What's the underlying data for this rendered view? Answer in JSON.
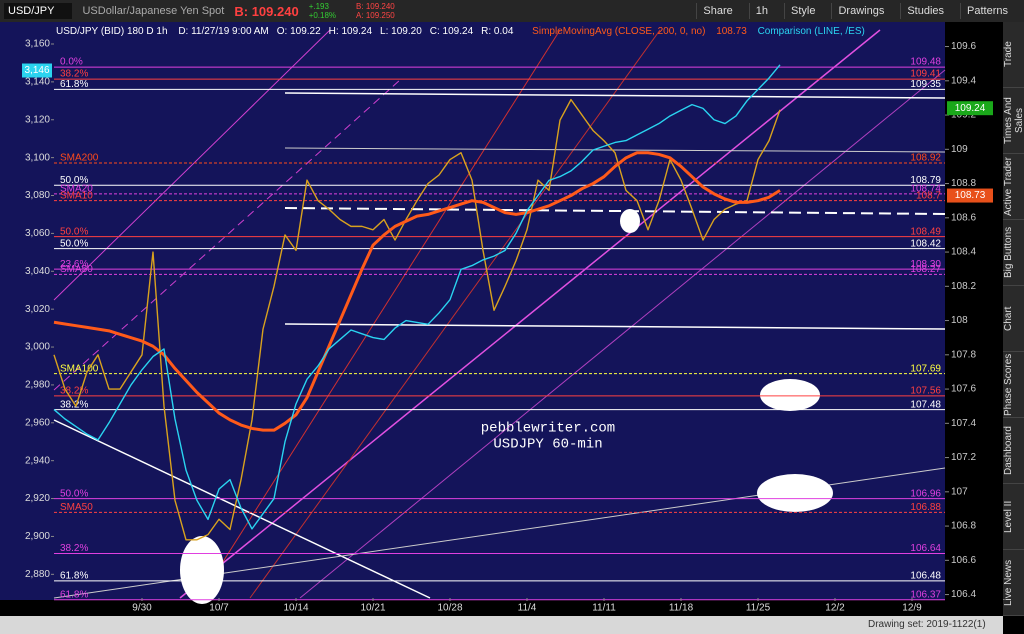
{
  "toolbar": {
    "symbol": "USD/JPY",
    "description": "USDollar/Japanese Yen Spot",
    "bid": "B: 109.240",
    "change": "+.193",
    "change_pct": "+0.18%",
    "bid_small": "B: 109.240",
    "ask": "A: 109.250",
    "buttons": [
      "Share",
      "1h",
      "Style",
      "Drawings",
      "Studies",
      "Patterns"
    ]
  },
  "sidebar": [
    "Trade",
    "Times And Sales",
    "Active Trader",
    "Big Buttons",
    "Chart",
    "Phase Scores",
    "Dashboard",
    "Level II",
    "Live News"
  ],
  "status": "Drawing set: 2019-1122(1)",
  "chart_data": {
    "type": "line",
    "title": "USD/JPY (BID) 180 D 1h",
    "info": [
      "D: 11/27/19 9:00 AM",
      "O: 109.22",
      "H: 109.24",
      "L: 109.20",
      "C: 109.24",
      "R: 0.04"
    ],
    "annotations": [
      "pebblewriter.com",
      "USDJPY 60-min"
    ],
    "categories": [
      null,
      null,
      null,
      null,
      null,
      null,
      null,
      null,
      "9/30",
      null,
      null,
      null,
      null,
      null,
      null,
      "10/7",
      null,
      null,
      null,
      null,
      null,
      null,
      "10/14",
      null,
      null,
      null,
      null,
      null,
      null,
      "10/21",
      null,
      null,
      null,
      null,
      null,
      null,
      "10/28",
      null,
      null,
      null,
      null,
      null,
      null,
      "11/4",
      null,
      null,
      null,
      null,
      null,
      null,
      "11/11",
      null,
      null,
      null,
      null,
      null,
      null,
      "11/18",
      null,
      null,
      null,
      null,
      null,
      null,
      "11/25",
      null,
      null,
      null,
      null,
      null,
      null,
      "12/2",
      null,
      null,
      null,
      null,
      null,
      null,
      "12/9",
      null,
      null,
      null
    ],
    "series": [
      {
        "name": "USD/JPY",
        "color": "#d9a21e",
        "values": [
          107.8,
          107.6,
          107.5,
          107.7,
          107.8,
          107.6,
          107.6,
          107.7,
          107.8,
          108.4,
          107.5,
          106.95,
          106.72,
          106.72,
          106.75,
          106.84,
          106.78,
          107.07,
          107.42,
          107.95,
          108.2,
          108.5,
          108.41,
          108.82,
          108.7,
          108.65,
          108.59,
          108.55,
          108.55,
          108.53,
          108.59,
          108.47,
          108.59,
          108.7,
          108.8,
          108.85,
          108.94,
          108.98,
          108.82,
          108.41,
          108.06,
          108.2,
          108.35,
          108.53,
          108.82,
          108.76,
          109.17,
          109.29,
          109.2,
          109.11,
          109.05,
          108.98,
          108.76,
          108.7,
          108.53,
          108.7,
          108.94,
          108.82,
          108.65,
          108.47,
          108.59,
          108.65,
          108.68,
          108.7,
          108.94,
          109.05,
          109.23,
          null,
          null,
          null,
          null,
          null,
          null,
          null,
          null,
          null,
          null,
          null,
          null,
          null,
          null,
          null
        ]
      },
      {
        "name": "SimpleMovingAvg (CLOSE, 200, 0, no)",
        "color": "#ff5a1a",
        "values": [
          107.99,
          107.98,
          107.97,
          107.96,
          107.95,
          107.94,
          107.92,
          107.9,
          107.88,
          107.85,
          107.8,
          107.72,
          107.65,
          107.58,
          107.52,
          107.46,
          107.42,
          107.39,
          107.37,
          107.36,
          107.36,
          107.4,
          107.45,
          107.55,
          107.7,
          107.85,
          108.0,
          108.15,
          108.3,
          108.44,
          108.5,
          108.55,
          108.58,
          108.61,
          108.62,
          108.64,
          108.66,
          108.68,
          108.7,
          108.69,
          108.66,
          108.63,
          108.62,
          108.63,
          108.65,
          108.67,
          108.7,
          108.73,
          108.77,
          108.8,
          108.84,
          108.9,
          108.95,
          108.98,
          108.98,
          108.97,
          108.95,
          108.9,
          108.84,
          108.78,
          108.74,
          108.71,
          108.69,
          108.69,
          108.7,
          108.72,
          108.76,
          null,
          null,
          null,
          null,
          null,
          null,
          null,
          null,
          null,
          null,
          null,
          null,
          null,
          null,
          null
        ]
      },
      {
        "name": "Comparison (LINE, /ES)",
        "color": "#2ad4f0",
        "axis": "y2",
        "values": [
          2967,
          2962,
          2958,
          2954,
          2951,
          2960,
          2970,
          2980,
          2988,
          2995,
          2999,
          2962,
          2935,
          2919,
          2909,
          2925,
          2930,
          2915,
          2904,
          2912,
          2920,
          2950,
          2970,
          2983,
          2990,
          2999,
          3004,
          3009,
          3007,
          3005,
          3004,
          3010,
          3014,
          3013,
          3012,
          3018,
          3025,
          3041,
          3043,
          3046,
          3048,
          3051,
          3060,
          3072,
          3080,
          3088,
          3090,
          3093,
          3098,
          3104,
          3106,
          3108,
          3109,
          3112,
          3115,
          3118,
          3122,
          3125,
          3128,
          3126,
          3120,
          3118,
          3122,
          3130,
          3136,
          3142,
          3149,
          null,
          null,
          null,
          null,
          null,
          null,
          null,
          null,
          null,
          null,
          null,
          null,
          null,
          null,
          null
        ]
      }
    ],
    "ylim": [
      106.38,
      109.72
    ],
    "yticks": [
      106.4,
      106.6,
      106.8,
      107,
      107.2,
      107.4,
      107.6,
      107.8,
      108,
      108.2,
      108.4,
      108.6,
      108.8,
      109,
      109.2,
      109.4,
      109.6
    ],
    "y2lim": [
      2867.5,
      3169.5
    ],
    "y2ticks": [
      {
        "value": 2880,
        "label": "2,880"
      },
      {
        "value": 2900,
        "label": "2,900"
      },
      {
        "value": 2920,
        "label": "2,920"
      },
      {
        "value": 2940,
        "label": "2,940"
      },
      {
        "value": 2960,
        "label": "2,960"
      },
      {
        "value": 2980,
        "label": "2,980"
      },
      {
        "value": 3000,
        "label": "3,000"
      },
      {
        "value": 3020,
        "label": "3,020"
      },
      {
        "value": 3040,
        "label": "3,040"
      },
      {
        "value": 3060,
        "label": "3,060"
      },
      {
        "value": 3080,
        "label": "3,080"
      },
      {
        "value": 3100,
        "label": "3,100"
      },
      {
        "value": 3120,
        "label": "3,120"
      },
      {
        "value": 3140,
        "label": "3,140"
      },
      {
        "value": 3160,
        "label": "3,160"
      }
    ],
    "grid": false,
    "levels": [
      {
        "value": 109.48,
        "label": "109.48",
        "left": "0.0%",
        "color": "#e040e0"
      },
      {
        "value": 109.41,
        "label": "109.41",
        "left": "38.2%",
        "color": "#ff4040"
      },
      {
        "value": 109.35,
        "label": "109.35",
        "left": "61.8%",
        "color": "#ffffff"
      },
      {
        "value": 108.92,
        "label": "108.92",
        "left": "SMA200",
        "color": "#ff4a1a"
      },
      {
        "value": 108.79,
        "label": "108.79",
        "left": "50.0%",
        "color": "#ffffff"
      },
      {
        "value": 108.74,
        "label": "108.74",
        "left": "SMA20",
        "color": "#e040e0"
      },
      {
        "value": 108.7,
        "label": "108.7",
        "left": "SMA10",
        "color": "#ff4040"
      },
      {
        "value": 108.49,
        "label": "108.49",
        "left": "50.0%",
        "color": "#ff4040"
      },
      {
        "value": 108.42,
        "label": "108.42",
        "left": "50.0%",
        "color": "#ffffff"
      },
      {
        "value": 108.3,
        "label": "108.30",
        "left": "23.6%",
        "color": "#e040e0"
      },
      {
        "value": 108.27,
        "label": "108.27",
        "left": "SMA50",
        "color": "#e040e0"
      },
      {
        "value": 107.69,
        "label": "107.69",
        "left": "SMA100",
        "color": "#ffff40"
      },
      {
        "value": 107.56,
        "label": "107.56",
        "left": "38.2%",
        "color": "#ff4040"
      },
      {
        "value": 107.48,
        "label": "107.48",
        "left": "38.2%",
        "color": "#ffffff"
      },
      {
        "value": 106.96,
        "label": "106.96",
        "left": "50.0%",
        "color": "#e040e0"
      },
      {
        "value": 106.88,
        "label": "106.88",
        "left": "SMA50",
        "color": "#ff4040"
      },
      {
        "value": 106.64,
        "label": "106.64",
        "left": "38.2%",
        "color": "#e040e0"
      },
      {
        "value": 106.48,
        "label": "106.48",
        "left": "61.8%",
        "color": "#ffffff"
      },
      {
        "value": 106.37,
        "label": "106.37",
        "left": "61.8%",
        "color": "#e040e0"
      }
    ],
    "badges": [
      {
        "value": 109.24,
        "color": "#1aa81a"
      },
      {
        "value": 108.73,
        "color": "#e8501a"
      }
    ],
    "y2_badge": {
      "value": 3146,
      "label": "3,146",
      "color": "#2ad4f0"
    }
  }
}
